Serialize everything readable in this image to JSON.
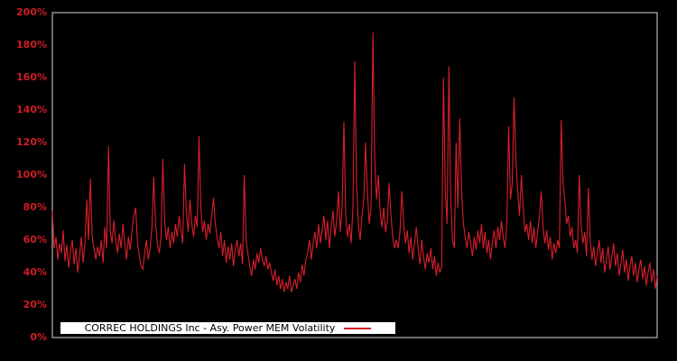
{
  "chart_data": {
    "type": "line",
    "title": "",
    "xlabel": "",
    "ylabel": "",
    "ylim": [
      0,
      200
    ],
    "y_tick_step": 20,
    "y_tick_labels": [
      "0%",
      "20%",
      "40%",
      "60%",
      "80%",
      "100%",
      "120%",
      "140%",
      "160%",
      "180%",
      "200%"
    ],
    "x_tick_labels": [],
    "grid": false,
    "legend_position": "bottom-inside",
    "series": [
      {
        "name": "CORREC HOLDINGS Inc - Asy. Power MEM Volatility",
        "unit": "%",
        "values": [
          78,
          55,
          62,
          48,
          58,
          52,
          66,
          47,
          57,
          43,
          53,
          60,
          45,
          55,
          40,
          50,
          62,
          46,
          58,
          85,
          60,
          98,
          62,
          55,
          48,
          56,
          50,
          60,
          46,
          68,
          55,
          118,
          65,
          58,
          72,
          60,
          52,
          64,
          55,
          70,
          58,
          48,
          62,
          54,
          66,
          75,
          80,
          58,
          50,
          44,
          42,
          52,
          60,
          48,
          55,
          68,
          99,
          70,
          58,
          52,
          62,
          110,
          72,
          60,
          68,
          55,
          65,
          58,
          70,
          62,
          75,
          66,
          58,
          107,
          78,
          65,
          85,
          70,
          62,
          75,
          68,
          124,
          80,
          65,
          72,
          60,
          70,
          64,
          75,
          86,
          70,
          62,
          55,
          65,
          50,
          60,
          46,
          56,
          48,
          58,
          44,
          54,
          60,
          50,
          58,
          45,
          100,
          60,
          52,
          44,
          38,
          48,
          42,
          52,
          46,
          55,
          48,
          44,
          50,
          42,
          46,
          40,
          35,
          42,
          32,
          38,
          30,
          36,
          28,
          34,
          30,
          38,
          28,
          32,
          36,
          30,
          40,
          34,
          45,
          38,
          48,
          52,
          60,
          48,
          58,
          65,
          55,
          70,
          58,
          66,
          75,
          60,
          72,
          55,
          68,
          78,
          62,
          72,
          90,
          65,
          80,
          133,
          75,
          62,
          70,
          58,
          80,
          170,
          95,
          70,
          60,
          75,
          85,
          120,
          90,
          70,
          80,
          188,
          110,
          85,
          100,
          78,
          68,
          80,
          65,
          72,
          95,
          75,
          62,
          55,
          60,
          55,
          65,
          90,
          70,
          58,
          66,
          52,
          62,
          48,
          58,
          68,
          55,
          45,
          60,
          50,
          42,
          52,
          46,
          55,
          42,
          50,
          38,
          46,
          40,
          44,
          160,
          90,
          70,
          167,
          85,
          60,
          55,
          120,
          80,
          135,
          90,
          70,
          62,
          55,
          65,
          58,
          50,
          62,
          54,
          66,
          58,
          70,
          55,
          65,
          52,
          60,
          48,
          58,
          66,
          55,
          68,
          60,
          72,
          62,
          55,
          70,
          130,
          85,
          95,
          148,
          110,
          90,
          75,
          100,
          80,
          65,
          70,
          60,
          72,
          58,
          68,
          55,
          65,
          75,
          90,
          68,
          58,
          66,
          54,
          62,
          48,
          58,
          52,
          60,
          55,
          134,
          95,
          85,
          70,
          75,
          62,
          68,
          55,
          60,
          52,
          100,
          70,
          58,
          65,
          50,
          92,
          60,
          48,
          56,
          44,
          52,
          60,
          46,
          55,
          40,
          48,
          56,
          42,
          50,
          58,
          44,
          52,
          38,
          46,
          54,
          40,
          48,
          35,
          44,
          50,
          38,
          46,
          34,
          42,
          48,
          36,
          44,
          32,
          40,
          46,
          34,
          42,
          30,
          38
        ]
      }
    ]
  },
  "legend": {
    "label": "CORREC HOLDINGS Inc - Asy. Power MEM Volatility"
  },
  "colors": {
    "background": "#000000",
    "line": "#d81f2c",
    "axis_label": "#cd1d26",
    "plot_border": "#b3b3b3",
    "legend_bg": "#ffffff",
    "legend_text": "#000000"
  }
}
